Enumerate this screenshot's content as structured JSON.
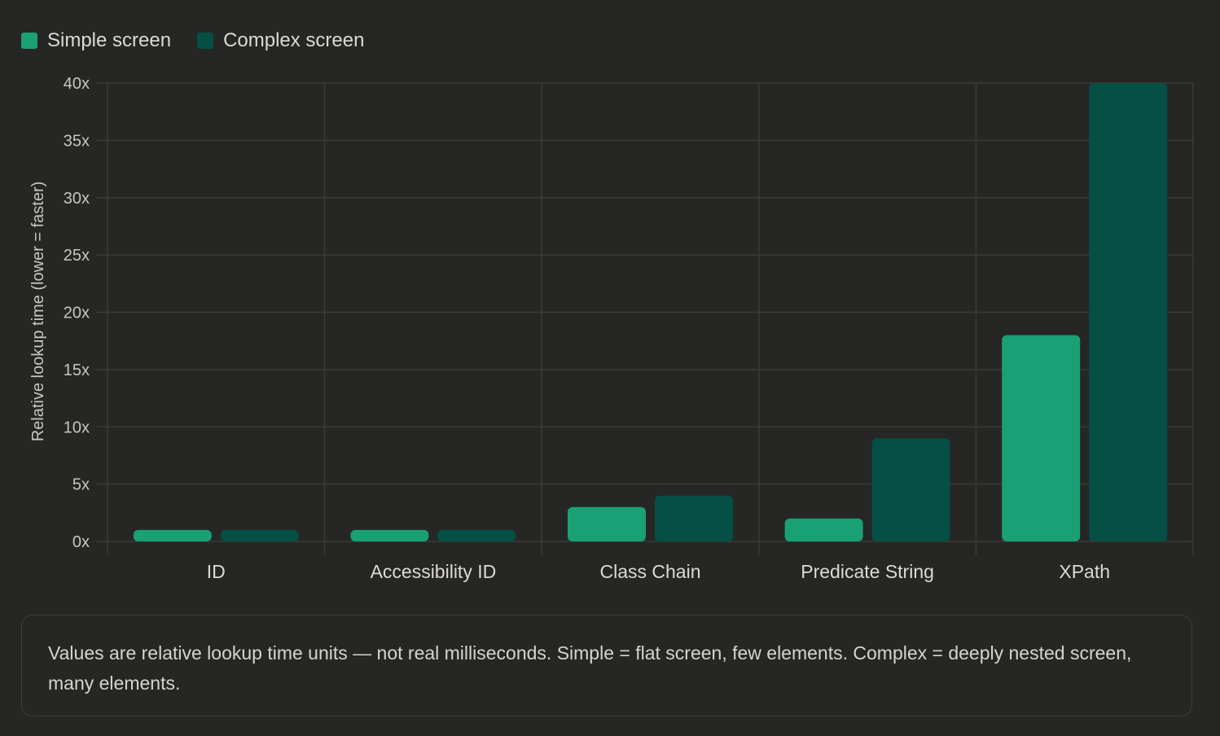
{
  "colors": {
    "simple": "#1aa075",
    "complex": "#054f44",
    "grid": "#3a3a37",
    "axis_text": "#c8c6be",
    "tick_label": "#dcdad2"
  },
  "legend": {
    "simple_label": "Simple screen",
    "complex_label": "Complex screen"
  },
  "chart_data": {
    "type": "bar",
    "ylabel": "Relative lookup time (lower = faster)",
    "xlabel": "",
    "ylim": [
      0,
      40
    ],
    "yticks": [
      0,
      5,
      10,
      15,
      20,
      25,
      30,
      35,
      40
    ],
    "ytick_suffix": "x",
    "grid": true,
    "legend_position": "top-left",
    "categories": [
      "ID",
      "Accessibility ID",
      "Class Chain",
      "Predicate String",
      "XPath"
    ],
    "series": [
      {
        "name": "Simple screen",
        "values": [
          1,
          1,
          3,
          2,
          18
        ]
      },
      {
        "name": "Complex screen",
        "values": [
          1,
          1,
          4,
          9,
          40
        ]
      }
    ]
  },
  "note": {
    "text": "Values are relative lookup time units — not real milliseconds. Simple = flat screen, few elements. Complex = deeply nested screen, many elements."
  }
}
